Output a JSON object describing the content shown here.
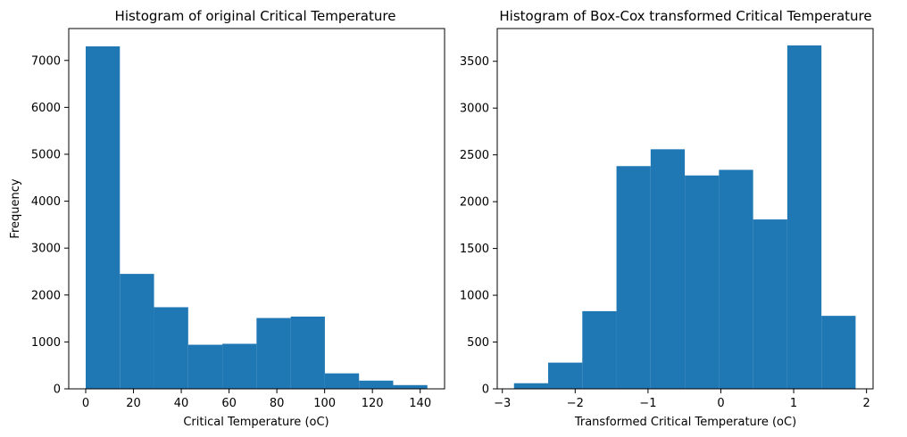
{
  "chart_data": [
    {
      "type": "histogram",
      "title": "Histogram of original Critical Temperature",
      "xlabel": "Critical Temperature (oC)",
      "ylabel": "Frequency",
      "xlim": [
        -7.1,
        150.2
      ],
      "ylim": [
        0,
        7680
      ],
      "xticks": [
        0,
        20,
        40,
        60,
        80,
        100,
        120,
        140
      ],
      "yticks": [
        0,
        1000,
        2000,
        3000,
        4000,
        5000,
        6000,
        7000
      ],
      "bin_edges": [
        0.0,
        14.3,
        28.6,
        42.9,
        57.2,
        71.5,
        85.8,
        100.1,
        114.4,
        128.7,
        143.0
      ],
      "values": [
        7300,
        2450,
        1740,
        940,
        960,
        1510,
        1540,
        330,
        175,
        80
      ],
      "color": "#1f77b4",
      "grid": false
    },
    {
      "type": "histogram",
      "title": "Histogram of Box-Cox transformed  Critical Temperature",
      "xlabel": "Transformed Critical Temperature (oC)",
      "ylabel": "",
      "xlim": [
        -3.07,
        2.09
      ],
      "ylim": [
        0,
        3850
      ],
      "xticks": [
        -3,
        -2,
        -1,
        0,
        1,
        2
      ],
      "yticks": [
        0,
        500,
        1000,
        1500,
        2000,
        2500,
        3000,
        3500
      ],
      "bin_edges": [
        -2.84,
        -2.371,
        -1.902,
        -1.433,
        -0.964,
        -0.495,
        -0.026,
        0.443,
        0.912,
        1.381,
        1.85
      ],
      "values": [
        60,
        280,
        830,
        2380,
        2560,
        2280,
        2340,
        1810,
        3670,
        780
      ],
      "color": "#1f77b4",
      "grid": false
    }
  ]
}
